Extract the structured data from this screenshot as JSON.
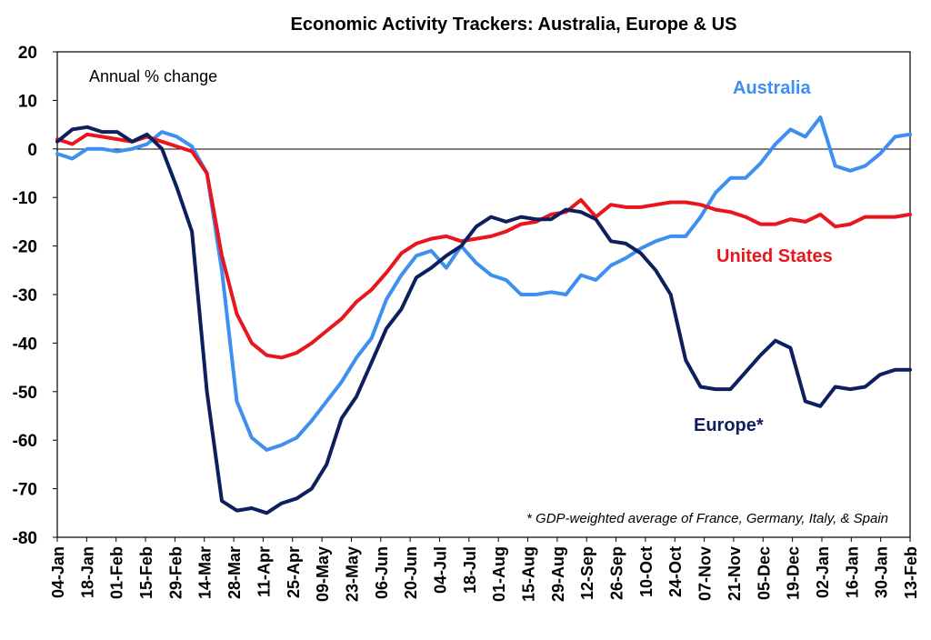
{
  "chart_data": {
    "type": "line",
    "title": "Economic Activity Trackers: Australia, Europe & US",
    "ylabel": "Annual % change",
    "note": "* GDP-weighted average of France, Germany, Italy, & Spain",
    "ylim": [
      -80,
      20
    ],
    "yticks": [
      20,
      10,
      0,
      -10,
      -20,
      -30,
      -40,
      -50,
      -60,
      -70,
      -80
    ],
    "x_tick_labels": [
      "04-Jan",
      "18-Jan",
      "01-Feb",
      "15-Feb",
      "29-Feb",
      "14-Mar",
      "28-Mar",
      "11-Apr",
      "25-Apr",
      "09-May",
      "23-May",
      "06-Jun",
      "20-Jun",
      "04-Jul",
      "18-Jul",
      "01-Aug",
      "15-Aug",
      "29-Aug",
      "12-Sep",
      "26-Sep",
      "10-Oct",
      "24-Oct",
      "07-Nov",
      "21-Nov",
      "05-Dec",
      "19-Dec",
      "02-Jan",
      "16-Jan",
      "30-Jan",
      "13-Feb"
    ],
    "x_weeks": 58,
    "grid": false,
    "zero_line": true,
    "series": [
      {
        "name": "Australia",
        "color": "#3d8ff0",
        "values": [
          -1,
          -2,
          0,
          0,
          -0.5,
          0,
          1,
          3.5,
          2.5,
          0.5,
          -5,
          -25,
          -52,
          -59.5,
          -62,
          -61,
          -59.5,
          -56,
          -52,
          -48,
          -43,
          -39,
          -31,
          -26,
          -22,
          -21,
          -24.5,
          -20,
          -23.5,
          -26,
          -27,
          -30,
          -30,
          -29.5,
          -30,
          -26,
          -27,
          -24,
          -22.5,
          -20.5,
          -19,
          -18,
          -18,
          -14,
          -9,
          -6,
          -6,
          -3,
          1,
          4,
          2.5,
          6.5,
          -3.5,
          -4.5,
          -3.5,
          -1,
          2.5,
          3
        ]
      },
      {
        "name": "United States",
        "color": "#e8161e",
        "values": [
          2,
          1,
          3,
          2.5,
          2,
          1.5,
          2.5,
          1.5,
          0.5,
          -0.5,
          -5,
          -22,
          -34,
          -40,
          -42.5,
          -43,
          -42,
          -40,
          -37.5,
          -35,
          -31.5,
          -29,
          -25.5,
          -21.5,
          -19.5,
          -18.5,
          -18,
          -19,
          -18.5,
          -18,
          -17,
          -15.5,
          -15,
          -13.5,
          -13,
          -10.5,
          -14,
          -11.5,
          -12,
          -12,
          -11.5,
          -11,
          -11,
          -11.5,
          -12.5,
          -13,
          -14,
          -15.5,
          -15.5,
          -14.5,
          -15,
          -13.5,
          -16,
          -15.5,
          -14,
          -14,
          -14,
          -13.5
        ]
      },
      {
        "name": "Europe*",
        "color": "#0d1f5c",
        "values": [
          1.5,
          4,
          4.5,
          3.5,
          3.5,
          1.5,
          3,
          0,
          -8,
          -17,
          -50,
          -72.5,
          -74.5,
          -74,
          -75,
          -73,
          -72,
          -70,
          -65,
          -55.5,
          -51,
          -44,
          -37,
          -33,
          -26.5,
          -24.5,
          -22,
          -20,
          -16,
          -14,
          -15,
          -14,
          -14.5,
          -14.5,
          -12.5,
          -13,
          -14.5,
          -19,
          -19.5,
          -21.5,
          -25,
          -30,
          -43.5,
          -49,
          -49.5,
          -49.5,
          -46,
          -42.5,
          -39.5,
          -41,
          -52,
          -53,
          -49,
          -49.5,
          -49,
          -46.5,
          -45.5,
          -45.5
        ]
      }
    ]
  },
  "labels": {
    "australia": "Australia",
    "united_states": "United States",
    "europe": "Europe*"
  }
}
